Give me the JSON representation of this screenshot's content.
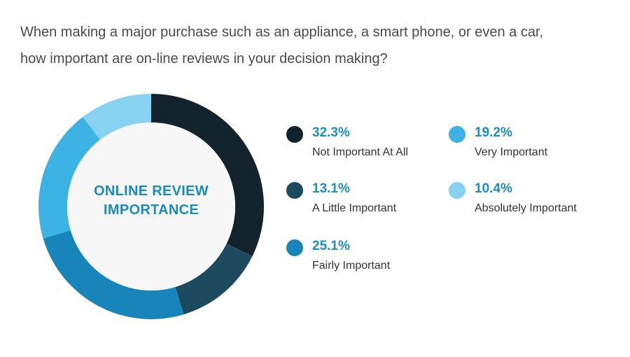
{
  "question": {
    "line1": "When making a major purchase such as an appliance, a smart phone, or even a car,",
    "line2": "how important  are on-line reviews in your decision making?"
  },
  "center_label": {
    "line1": "ONLINE REVIEW",
    "line2": "IMPORTANCE"
  },
  "chart_data": {
    "type": "pie",
    "title": "ONLINE REVIEW IMPORTANCE",
    "slices": [
      {
        "label": "Not Important At All",
        "value": 32.3,
        "display": "32.3%",
        "color": "#12232e"
      },
      {
        "label": "A Little Important",
        "value": 13.1,
        "display": "13.1%",
        "color": "#1e4a60"
      },
      {
        "label": "Fairly Important",
        "value": 25.1,
        "display": "25.1%",
        "color": "#1785b9"
      },
      {
        "label": "Very Important",
        "value": 19.2,
        "display": "19.2%",
        "color": "#3db2e4"
      },
      {
        "label": "Absolutely Important",
        "value": 10.4,
        "display": "10.4%",
        "color": "#87d2f1"
      }
    ],
    "start": "12 o'clock",
    "direction": "clockwise",
    "donut": true,
    "legend_position": "right"
  }
}
